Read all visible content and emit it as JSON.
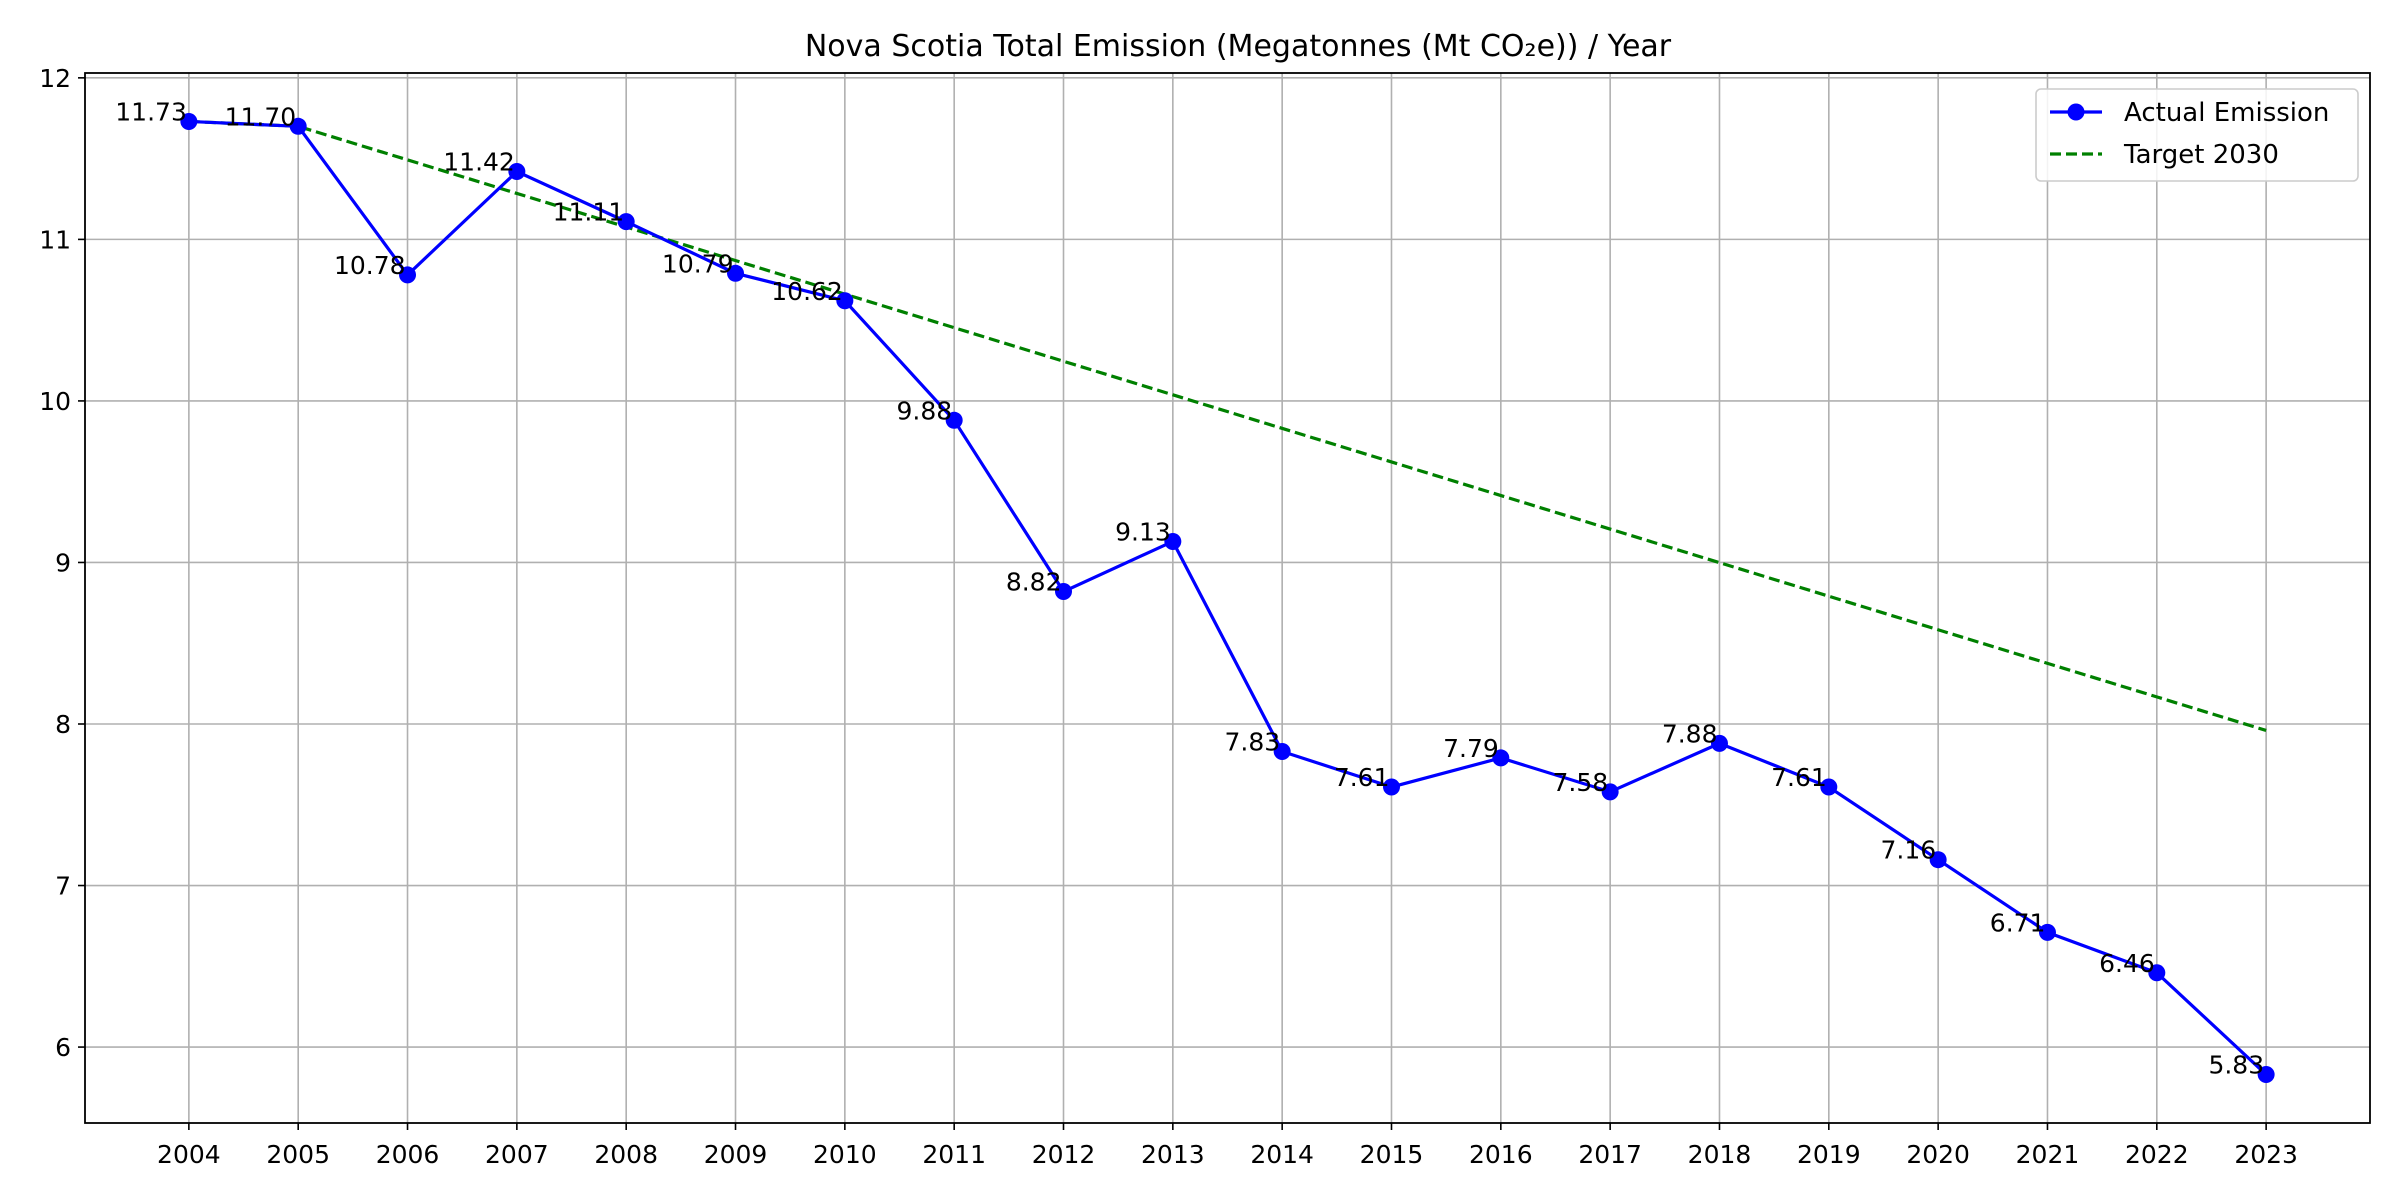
{
  "chart_data": {
    "type": "line",
    "title": "Nova Scotia Total Emission (Megatonnes (Mt CO₂e)) / Year",
    "xlabel": "",
    "ylabel": "",
    "x": [
      "2004",
      "2005",
      "2006",
      "2007",
      "2008",
      "2009",
      "2010",
      "2011",
      "2012",
      "2013",
      "2014",
      "2015",
      "2016",
      "2017",
      "2018",
      "2019",
      "2020",
      "2021",
      "2022",
      "2023"
    ],
    "xlim": [
      2003.05,
      2023.95
    ],
    "ylim": [
      5.53,
      12.03
    ],
    "yticks": [
      6,
      7,
      8,
      9,
      10,
      11,
      12
    ],
    "grid": true,
    "legend_position": "top-right",
    "series": [
      {
        "name": "Actual Emission",
        "style": "solid-line-with-circle-markers",
        "color": "#0000ff",
        "x": [
          2004,
          2005,
          2006,
          2007,
          2008,
          2009,
          2010,
          2011,
          2012,
          2013,
          2014,
          2015,
          2016,
          2017,
          2018,
          2019,
          2020,
          2021,
          2022,
          2023
        ],
        "values": [
          11.73,
          11.7,
          10.78,
          11.42,
          11.11,
          10.79,
          10.62,
          9.88,
          8.82,
          9.13,
          7.83,
          7.61,
          7.79,
          7.58,
          7.88,
          7.61,
          7.16,
          6.71,
          6.46,
          5.83
        ],
        "labels": [
          "11.73",
          "11.70",
          "10.78",
          "11.42",
          "11.11",
          "10.79",
          "10.62",
          "9.88",
          "8.82",
          "9.13",
          "7.83",
          "7.61",
          "7.79",
          "7.58",
          "7.88",
          "7.61",
          "7.16",
          "6.71",
          "6.46",
          "5.83"
        ]
      },
      {
        "name": "Target 2030",
        "style": "dashed-line",
        "color": "#008000",
        "x": [
          2004,
          2005,
          2023
        ],
        "values": [
          11.73,
          11.7,
          7.96
        ]
      }
    ]
  }
}
